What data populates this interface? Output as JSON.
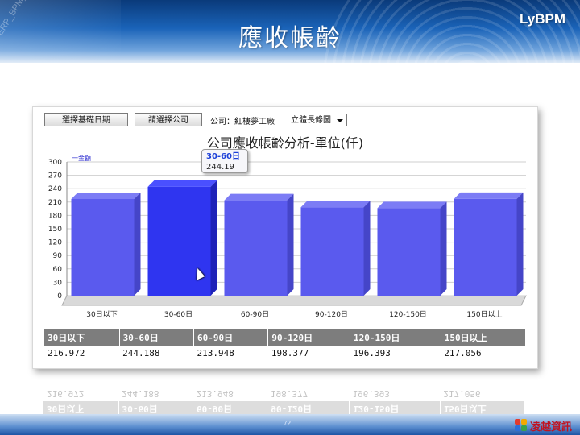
{
  "slide": {
    "title": "應收帳齡",
    "brand": "LyBPM",
    "watermark": "ERP_BPM_BI_Flow_",
    "page_number": "72",
    "logo_text": "凌越資訊"
  },
  "toolbar": {
    "base_date_button": "選擇基礎日期",
    "company_button": "請選擇公司",
    "company_label": "公司：紅樓夢工廠",
    "dept_select": "立體長條圖"
  },
  "tooltip": {
    "category": "30-60日",
    "value": "244.19"
  },
  "colors": {
    "bar": "#5a5aee",
    "bar_highlight": "#2f35f0",
    "table_header": "#7d7d7d"
  },
  "chart_data": {
    "type": "bar",
    "title": "公司應收帳齡分析-單位(仟)",
    "legend": "一金額",
    "categories": [
      "30日以下",
      "30-60日",
      "60-90日",
      "90-120日",
      "120-150日",
      "150日以上"
    ],
    "series": [
      {
        "name": "一金額",
        "values": [
          216.972,
          244.188,
          213.948,
          198.377,
          196.393,
          217.056
        ]
      }
    ],
    "y_ticks": [
      "0",
      "30",
      "60",
      "90",
      "120",
      "150",
      "180",
      "210",
      "240",
      "270",
      "300"
    ],
    "ylim": [
      0,
      300
    ],
    "grid": true,
    "highlight_index": 1
  },
  "table": {
    "headers": [
      "30日以下",
      "30-60日",
      "60-90日",
      "90-120日",
      "120-150日",
      "150日以上"
    ],
    "values": [
      "216.972",
      "244.188",
      "213.948",
      "198.377",
      "196.393",
      "217.056"
    ]
  }
}
